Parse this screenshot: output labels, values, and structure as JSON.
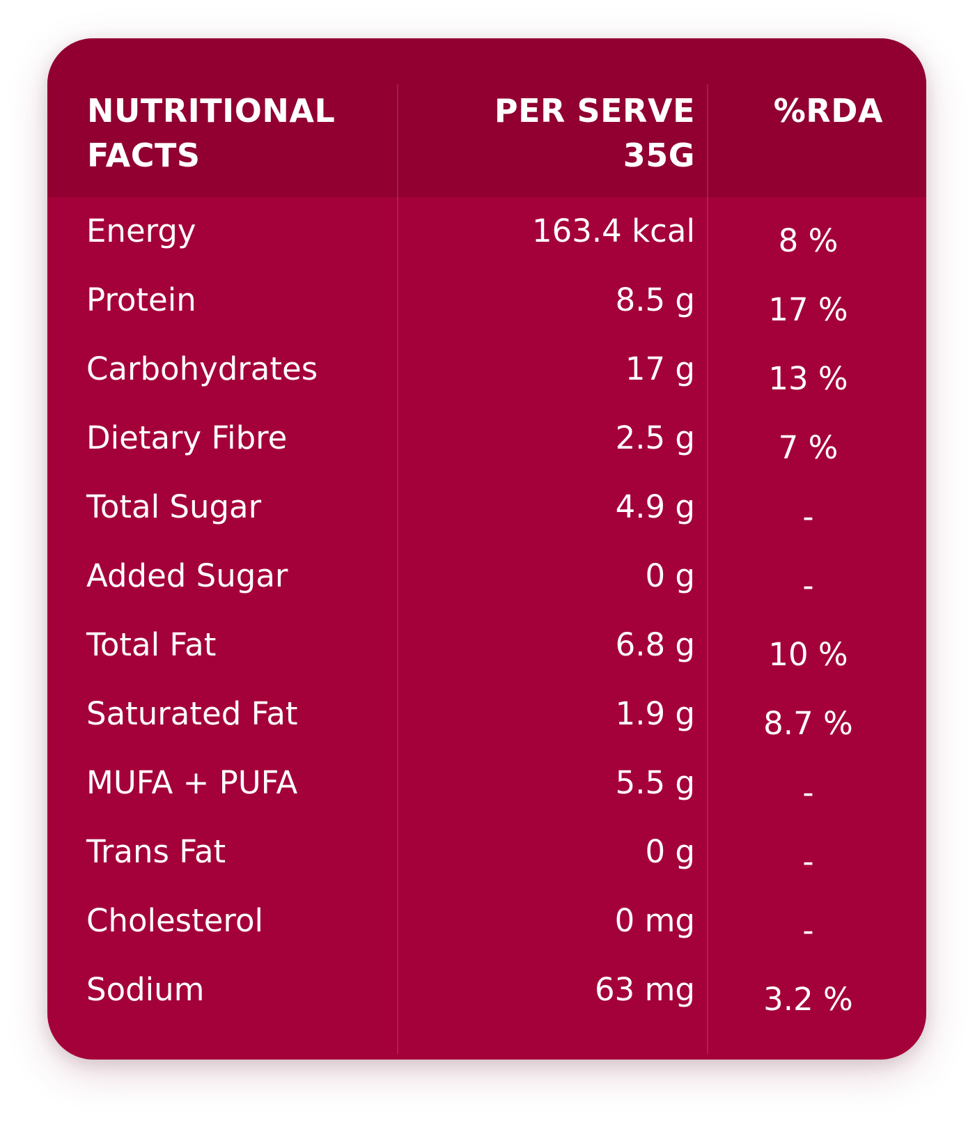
{
  "table": {
    "headers": {
      "name": [
        "NUTRITIONAL",
        "FACTS"
      ],
      "serve": [
        "PER SERVE",
        "35G"
      ],
      "rda": [
        "%RDA"
      ]
    },
    "rows": [
      {
        "name": "Energy",
        "serve": "163.4 kcal",
        "rda": "8 %"
      },
      {
        "name": "Protein",
        "serve": "8.5 g",
        "rda": "17 %"
      },
      {
        "name": "Carbohydrates",
        "serve": "17 g",
        "rda": "13 %"
      },
      {
        "name": "Dietary Fibre",
        "serve": "2.5 g",
        "rda": "7 %"
      },
      {
        "name": "Total Sugar",
        "serve": "4.9 g",
        "rda": "-"
      },
      {
        "name": "Added Sugar",
        "serve": "0 g",
        "rda": "-"
      },
      {
        "name": "Total Fat",
        "serve": "6.8 g",
        "rda": "10 %"
      },
      {
        "name": "Saturated Fat",
        "serve": "1.9 g",
        "rda": "8.7 %"
      },
      {
        "name": "MUFA + PUFA",
        "serve": "5.5 g",
        "rda": "-"
      },
      {
        "name": "Trans Fat",
        "serve": "0 g",
        "rda": "-"
      },
      {
        "name": "Cholesterol",
        "serve": "0 mg",
        "rda": "-"
      },
      {
        "name": "Sodium",
        "serve": "63 mg",
        "rda": "3.2 %"
      }
    ]
  },
  "colors": {
    "card": "#a4003a",
    "header": "#910031",
    "text": "#ffffff"
  }
}
